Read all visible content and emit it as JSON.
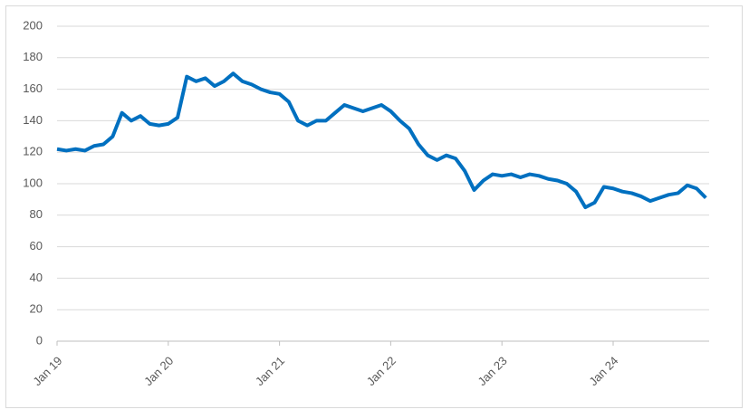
{
  "chart_data": {
    "type": "line",
    "categories": [
      "Jan 19",
      null,
      null,
      null,
      null,
      null,
      null,
      null,
      null,
      null,
      null,
      null,
      "Jan 20",
      null,
      null,
      null,
      null,
      null,
      null,
      null,
      null,
      null,
      null,
      null,
      "Jan 21",
      null,
      null,
      null,
      null,
      null,
      null,
      null,
      null,
      null,
      null,
      null,
      "Jan 22",
      null,
      null,
      null,
      null,
      null,
      null,
      null,
      null,
      null,
      null,
      null,
      "Jan 23",
      null,
      null,
      null,
      null,
      null,
      null,
      null,
      null,
      null,
      null,
      null,
      "Jan 24",
      null,
      null,
      null,
      null,
      null,
      null,
      null,
      null,
      null,
      null
    ],
    "series": [
      {
        "color": "#0070c0",
        "values": [
          122,
          121,
          122,
          121,
          124,
          125,
          130,
          145,
          140,
          143,
          138,
          137,
          138,
          142,
          168,
          165,
          167,
          162,
          165,
          170,
          165,
          163,
          160,
          158,
          157,
          152,
          140,
          137,
          140,
          140,
          145,
          150,
          148,
          146,
          148,
          150,
          146,
          140,
          135,
          125,
          118,
          115,
          118,
          116,
          108,
          96,
          102,
          106,
          105,
          106,
          104,
          106,
          105,
          103,
          102,
          100,
          95,
          85,
          88,
          98,
          97,
          95,
          94,
          92,
          89,
          91,
          93,
          94,
          99,
          97,
          91
        ]
      }
    ],
    "ylim": [
      0,
      200
    ],
    "yticks": [
      0,
      20,
      40,
      60,
      80,
      100,
      120,
      140,
      160,
      180,
      200
    ],
    "grid": true
  }
}
